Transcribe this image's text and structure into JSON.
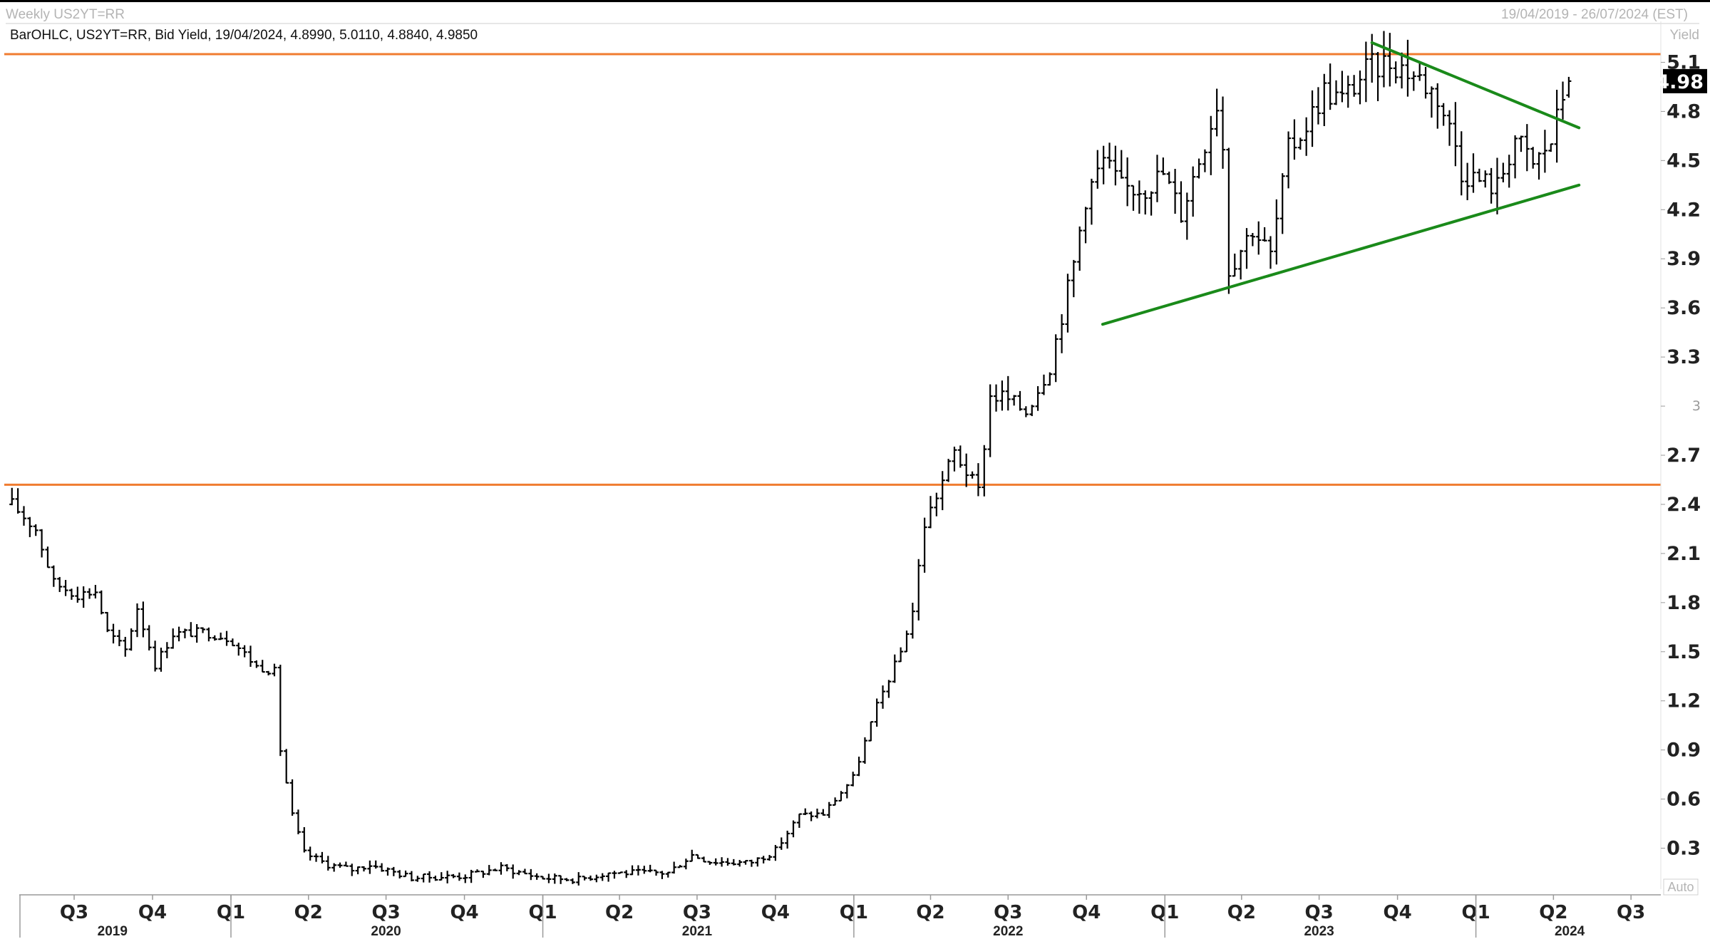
{
  "header": {
    "title": "Weekly US2YT=RR",
    "date_range": "19/04/2019 - 26/07/2024 (EST)",
    "info": "BarOHLC, US2YT=RR, Bid Yield, 19/04/2024, 4.8990, 5.0110, 4.8840, 4.9850"
  },
  "axis": {
    "unit_label": "Yield",
    "auto_label": "Auto",
    "last_value_label": "4.98"
  },
  "colors": {
    "bars": "#000000",
    "horizontal_lines": "#f07c30",
    "trend_lines": "#1a8a1a",
    "last_value_bg": "#000000"
  },
  "chart_data": {
    "type": "ohlc",
    "series": "US2YT=RR Weekly Bid Yield",
    "x_range": [
      "2019-04-19",
      "2024-07-26"
    ],
    "ylim": [
      0.05,
      5.35
    ],
    "y_ticks": [
      {
        "value": 5.1,
        "label": "5.1"
      },
      {
        "value": 4.8,
        "label": "4.8"
      },
      {
        "value": 4.5,
        "label": "4.5"
      },
      {
        "value": 4.2,
        "label": "4.2"
      },
      {
        "value": 3.9,
        "label": "3.9"
      },
      {
        "value": 3.6,
        "label": "3.6"
      },
      {
        "value": 3.3,
        "label": "3.3"
      },
      {
        "value": 3.0,
        "label": "3",
        "minor": true
      },
      {
        "value": 2.7,
        "label": "2.7"
      },
      {
        "value": 2.4,
        "label": "2.4"
      },
      {
        "value": 2.1,
        "label": "2.1"
      },
      {
        "value": 1.8,
        "label": "1.8"
      },
      {
        "value": 1.5,
        "label": "1.5"
      },
      {
        "value": 1.2,
        "label": "1.2"
      },
      {
        "value": 0.9,
        "label": "0.9"
      },
      {
        "value": 0.6,
        "label": "0.6"
      },
      {
        "value": 0.3,
        "label": "0.3"
      }
    ],
    "quarter_ticks": [
      {
        "date": "2019-07-01",
        "label": "Q3"
      },
      {
        "date": "2019-10-01",
        "label": "Q4"
      },
      {
        "date": "2020-01-01",
        "label": "Q1"
      },
      {
        "date": "2020-04-01",
        "label": "Q2"
      },
      {
        "date": "2020-07-01",
        "label": "Q3"
      },
      {
        "date": "2020-10-01",
        "label": "Q4"
      },
      {
        "date": "2021-01-01",
        "label": "Q1"
      },
      {
        "date": "2021-04-01",
        "label": "Q2"
      },
      {
        "date": "2021-07-01",
        "label": "Q3"
      },
      {
        "date": "2021-10-01",
        "label": "Q4"
      },
      {
        "date": "2022-01-01",
        "label": "Q1"
      },
      {
        "date": "2022-04-01",
        "label": "Q2"
      },
      {
        "date": "2022-07-01",
        "label": "Q3"
      },
      {
        "date": "2022-10-01",
        "label": "Q4"
      },
      {
        "date": "2023-01-01",
        "label": "Q1"
      },
      {
        "date": "2023-04-01",
        "label": "Q2"
      },
      {
        "date": "2023-07-01",
        "label": "Q3"
      },
      {
        "date": "2023-10-01",
        "label": "Q4"
      },
      {
        "date": "2024-01-01",
        "label": "Q1"
      },
      {
        "date": "2024-04-01",
        "label": "Q2"
      },
      {
        "date": "2024-07-01",
        "label": "Q3"
      }
    ],
    "years": [
      {
        "label": "2019",
        "center": "2019-08-15",
        "boundary": "2019-04-15"
      },
      {
        "label": "2020",
        "center": "2020-07-01",
        "boundary": "2020-01-01"
      },
      {
        "label": "2021",
        "center": "2021-07-01",
        "boundary": "2021-01-01"
      },
      {
        "label": "2022",
        "center": "2022-07-01",
        "boundary": "2022-01-01"
      },
      {
        "label": "2023",
        "center": "2023-07-01",
        "boundary": "2023-01-01"
      },
      {
        "label": "2024",
        "center": "2024-04-20",
        "boundary": "2024-01-01"
      }
    ],
    "horizontal_lines": [
      5.15,
      2.52
    ],
    "trend_lines": [
      {
        "from": {
          "date": "2022-10-20",
          "value": 3.5
        },
        "to": {
          "date": "2024-05-01",
          "value": 4.35
        }
      },
      {
        "from": {
          "date": "2023-09-01",
          "value": 5.22
        },
        "to": {
          "date": "2024-05-01",
          "value": 4.7
        }
      }
    ],
    "last": {
      "date": "2024-04-19",
      "open": 4.899,
      "high": 5.011,
      "low": 4.884,
      "close": 4.985
    },
    "anchors": [
      [
        "2019-04-19",
        2.4
      ],
      [
        "2019-05-17",
        2.25
      ],
      [
        "2019-06-07",
        1.92
      ],
      [
        "2019-07-05",
        1.85
      ],
      [
        "2019-07-26",
        1.87
      ],
      [
        "2019-08-09",
        1.62
      ],
      [
        "2019-08-30",
        1.51
      ],
      [
        "2019-09-13",
        1.77
      ],
      [
        "2019-10-04",
        1.42
      ],
      [
        "2019-10-25",
        1.61
      ],
      [
        "2019-12-01",
        1.62
      ],
      [
        "2019-12-31",
        1.58
      ],
      [
        "2020-01-31",
        1.41
      ],
      [
        "2020-02-21",
        1.38
      ],
      [
        "2020-02-28",
        0.9
      ],
      [
        "2020-03-13",
        0.5
      ],
      [
        "2020-03-27",
        0.27
      ],
      [
        "2020-04-24",
        0.2
      ],
      [
        "2020-05-22",
        0.17
      ],
      [
        "2020-06-12",
        0.2
      ],
      [
        "2020-07-31",
        0.12
      ],
      [
        "2020-09-30",
        0.13
      ],
      [
        "2020-11-13",
        0.18
      ],
      [
        "2020-12-31",
        0.12
      ],
      [
        "2021-02-12",
        0.11
      ],
      [
        "2021-03-19",
        0.15
      ],
      [
        "2021-05-28",
        0.15
      ],
      [
        "2021-06-25",
        0.26
      ],
      [
        "2021-07-16",
        0.22
      ],
      [
        "2021-08-31",
        0.21
      ],
      [
        "2021-09-30",
        0.28
      ],
      [
        "2021-10-29",
        0.5
      ],
      [
        "2021-11-26",
        0.51
      ],
      [
        "2021-12-31",
        0.73
      ],
      [
        "2022-01-28",
        1.17
      ],
      [
        "2022-02-25",
        1.5
      ],
      [
        "2022-03-11",
        1.75
      ],
      [
        "2022-03-25",
        2.28
      ],
      [
        "2022-04-29",
        2.72
      ],
      [
        "2022-05-27",
        2.48
      ],
      [
        "2022-06-10",
        3.06
      ],
      [
        "2022-06-24",
        3.06
      ],
      [
        "2022-07-22",
        2.97
      ],
      [
        "2022-08-19",
        3.25
      ],
      [
        "2022-09-16",
        3.87
      ],
      [
        "2022-09-30",
        4.28
      ],
      [
        "2022-10-21",
        4.5
      ],
      [
        "2022-11-11",
        4.33
      ],
      [
        "2022-12-09",
        4.34
      ],
      [
        "2022-12-30",
        4.42
      ],
      [
        "2023-01-20",
        4.18
      ],
      [
        "2023-02-17",
        4.62
      ],
      [
        "2023-03-03",
        4.86
      ],
      [
        "2023-03-10",
        4.59
      ],
      [
        "2023-03-17",
        3.84
      ],
      [
        "2023-04-14",
        4.09
      ],
      [
        "2023-05-05",
        3.92
      ],
      [
        "2023-05-26",
        4.56
      ],
      [
        "2023-06-16",
        4.72
      ],
      [
        "2023-07-07",
        4.93
      ],
      [
        "2023-07-28",
        4.87
      ],
      [
        "2023-08-25",
        5.05
      ],
      [
        "2023-09-22",
        5.11
      ],
      [
        "2023-10-13",
        5.05
      ],
      [
        "2023-10-27",
        5.0
      ],
      [
        "2023-11-17",
        4.89
      ],
      [
        "2023-12-08",
        4.6
      ],
      [
        "2023-12-15",
        4.44
      ],
      [
        "2024-01-05",
        4.38
      ],
      [
        "2024-01-26",
        4.34
      ],
      [
        "2024-02-16",
        4.64
      ],
      [
        "2024-03-08",
        4.47
      ],
      [
        "2024-03-29",
        4.62
      ],
      [
        "2024-04-05",
        4.75
      ],
      [
        "2024-04-12",
        4.9
      ]
    ]
  }
}
